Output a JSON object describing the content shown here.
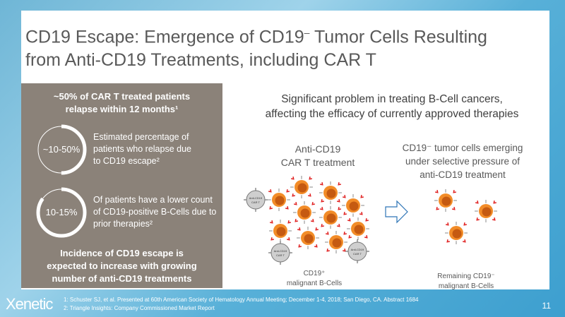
{
  "title": {
    "line1_a": "CD19 Escape: Emergence of CD19",
    "line1_sup": "–",
    "line1_b": " Tumor Cells Resulting",
    "line2": "from Anti-CD19 Treatments, including CAR T"
  },
  "panel": {
    "header": [
      "~50% of CAR T treated patients",
      "relapse within 12 months¹"
    ],
    "stats": [
      {
        "value": "~10-50%",
        "fraction": 0.5,
        "text": [
          "Estimated percentage of",
          "patients who relapse due",
          "to CD19 escape²"
        ]
      },
      {
        "value": "10-15%",
        "fraction": 0.85,
        "text": [
          "Of patients have a lower count",
          "of CD19-positive B-Cells due to",
          "prior therapies²"
        ]
      }
    ],
    "footer": [
      "Incidence of CD19 escape is",
      "expected to increase with growing",
      "number of anti-CD19 treatments"
    ]
  },
  "subtitle": [
    "Significant problem in treating B-Cell cancers,",
    "affecting the efficacy of currently approved therapies"
  ],
  "left_label": [
    "Anti-CD19",
    "CAR T treatment"
  ],
  "right_label": [
    "CD19⁻ tumor cells emerging",
    "under selective pressure of",
    "anti-CD19 treatment"
  ],
  "car_t_label": [
    "Anti-CD19",
    "CAR T"
  ],
  "left_caption": [
    "CD19⁺",
    "malignant B-Cells"
  ],
  "right_caption": [
    "Remaining CD19⁻",
    "malignant B-Cells"
  ],
  "footnotes": [
    "1: Schuster SJ, et al. Presented at 60th American Society of Hematology Annual Meeting; December 1-4, 2018; San Diego, CA. Abstract 1684",
    "2: Triangle Insights: Company Commissioned Market Report"
  ],
  "logo": "Xenetic",
  "page_number": "11",
  "colors": {
    "panel": "#8b8279",
    "cell": "#f28c28",
    "nucleus": "#c55a11",
    "receptor": "#e02020",
    "arrow": "#2e75b6"
  }
}
